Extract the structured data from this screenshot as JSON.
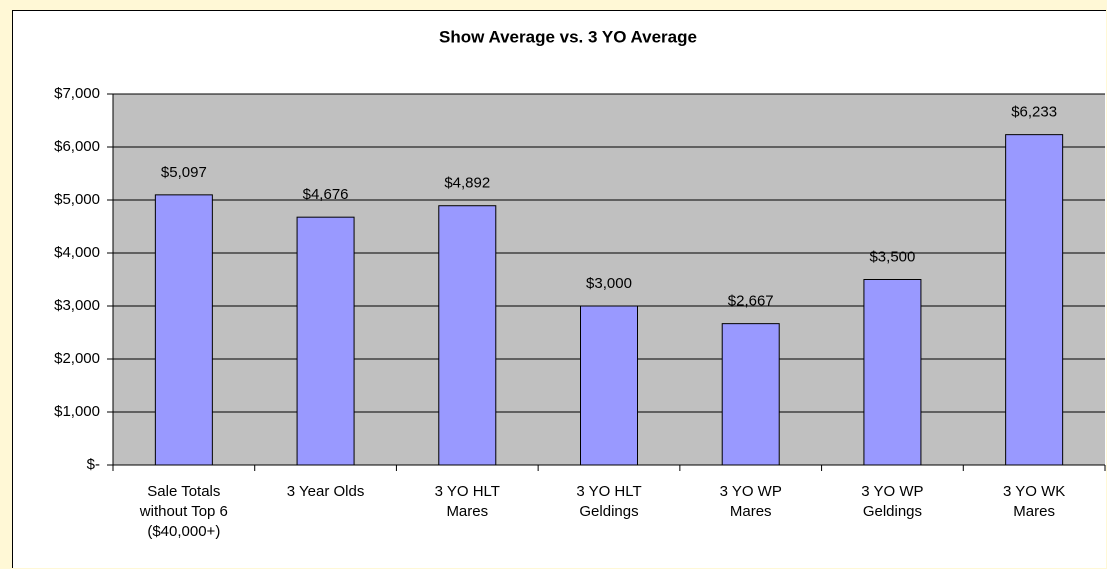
{
  "chart_data": {
    "type": "bar",
    "title": "Show Average vs. 3 YO Average",
    "categories": [
      "Sale Totals without Top 6 ($40,000+)",
      "3 Year Olds",
      "3 YO HLT Mares",
      "3 YO HLT Geldings",
      "3 YO WP Mares",
      "3 YO WP Geldings",
      "3 YO WK Mares"
    ],
    "values": [
      5097,
      4676,
      4892,
      3000,
      2667,
      3500,
      6233
    ],
    "value_labels": [
      "$5,097",
      "$4,676",
      "$4,892",
      "$3,000",
      "$2,667",
      "$3,500",
      "$6,233"
    ],
    "color": "#9999ff",
    "ylim": [
      0,
      7000
    ],
    "yticks": [
      {
        "value": 0,
        "label": "$-"
      },
      {
        "value": 1000,
        "label": "$1,000"
      },
      {
        "value": 2000,
        "label": "$2,000"
      },
      {
        "value": 3000,
        "label": "$3,000"
      },
      {
        "value": 4000,
        "label": "$4,000"
      },
      {
        "value": 5000,
        "label": "$5,000"
      },
      {
        "value": 6000,
        "label": "$6,000"
      },
      {
        "value": 7000,
        "label": "$7,000"
      }
    ],
    "grid": true
  }
}
